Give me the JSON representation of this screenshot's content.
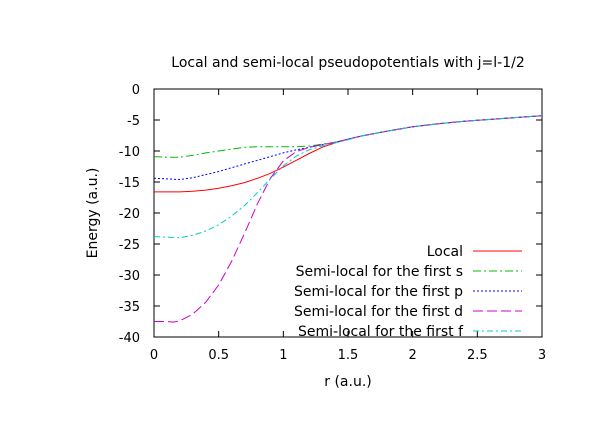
{
  "chart_data": {
    "type": "line",
    "title": "Local and semi-local pseudopotentials with j=l-1/2",
    "xlabel": "r (a.u.)",
    "ylabel": "Energy (a.u.)",
    "xlim": [
      0,
      3
    ],
    "ylim": [
      -40,
      0
    ],
    "xticks": [
      0,
      0.5,
      1,
      1.5,
      2,
      2.5,
      3
    ],
    "xtick_labels": [
      "0",
      "0.5",
      "1",
      "1.5",
      "2",
      "2.5",
      "3"
    ],
    "yticks": [
      0,
      -5,
      -10,
      -15,
      -20,
      -25,
      -30,
      -35,
      -40
    ],
    "ytick_labels": [
      "0",
      "-5",
      "-10",
      "-15",
      "-20",
      "-25",
      "-30",
      "-35",
      "-40"
    ],
    "grid": false,
    "legend_position": "bottom-right",
    "series": [
      {
        "name": "Local",
        "color": "#ff0000",
        "dash": "",
        "x": [
          0,
          0.1,
          0.2,
          0.3,
          0.4,
          0.5,
          0.6,
          0.7,
          0.8,
          0.9,
          1.0,
          1.1,
          1.2,
          1.3,
          1.4,
          1.5,
          1.6,
          1.8,
          2.0,
          2.2,
          2.4,
          2.6,
          2.8,
          3.0
        ],
        "y": [
          -16.6,
          -16.6,
          -16.6,
          -16.5,
          -16.3,
          -16.0,
          -15.6,
          -15.1,
          -14.4,
          -13.6,
          -12.6,
          -11.5,
          -10.4,
          -9.4,
          -8.7,
          -8.1,
          -7.6,
          -6.8,
          -6.1,
          -5.6,
          -5.2,
          -4.9,
          -4.6,
          -4.3
        ]
      },
      {
        "name": "Semi-local for the first s",
        "color": "#00bb00",
        "dash": "8,3,2,3",
        "x": [
          0,
          0.1,
          0.2,
          0.3,
          0.4,
          0.5,
          0.6,
          0.7,
          0.8,
          0.9,
          1.0,
          1.1,
          1.2,
          1.3,
          1.4,
          1.5,
          1.6,
          1.8,
          2.0,
          2.2,
          2.4,
          2.6,
          2.8,
          3.0
        ],
        "y": [
          -10.9,
          -11.0,
          -11.0,
          -10.7,
          -10.3,
          -10.0,
          -9.7,
          -9.4,
          -9.3,
          -9.3,
          -9.3,
          -9.3,
          -9.2,
          -8.9,
          -8.6,
          -8.1,
          -7.6,
          -6.8,
          -6.1,
          -5.6,
          -5.2,
          -4.9,
          -4.6,
          -4.3
        ]
      },
      {
        "name": "Semi-local for the first p",
        "color": "#0000ff",
        "dash": "2,2",
        "x": [
          0,
          0.1,
          0.2,
          0.3,
          0.4,
          0.5,
          0.6,
          0.7,
          0.8,
          0.9,
          1.0,
          1.1,
          1.2,
          1.3,
          1.4,
          1.5,
          1.6,
          1.8,
          2.0,
          2.2,
          2.4,
          2.6,
          2.8,
          3.0
        ],
        "y": [
          -14.4,
          -14.5,
          -14.6,
          -14.3,
          -13.8,
          -13.3,
          -12.7,
          -12.1,
          -11.5,
          -10.9,
          -10.3,
          -9.8,
          -9.4,
          -9.0,
          -8.6,
          -8.1,
          -7.6,
          -6.8,
          -6.1,
          -5.6,
          -5.2,
          -4.9,
          -4.6,
          -4.3
        ]
      },
      {
        "name": "Semi-local for the first d",
        "color": "#cc00cc",
        "dash": "10,4",
        "x": [
          0,
          0.1,
          0.15,
          0.2,
          0.3,
          0.4,
          0.5,
          0.6,
          0.7,
          0.8,
          0.9,
          1.0,
          1.1,
          1.2,
          1.3,
          1.4,
          1.5,
          1.6,
          1.8,
          2.0,
          2.2,
          2.4,
          2.6,
          2.8,
          3.0
        ],
        "y": [
          -37.5,
          -37.5,
          -37.6,
          -37.4,
          -36.3,
          -34.4,
          -31.6,
          -27.8,
          -23.3,
          -18.5,
          -14.4,
          -11.6,
          -10.1,
          -9.4,
          -9.0,
          -8.6,
          -8.1,
          -7.6,
          -6.8,
          -6.1,
          -5.6,
          -5.2,
          -4.9,
          -4.6,
          -4.3
        ]
      },
      {
        "name": "Semi-local for the first f",
        "color": "#00cccc",
        "dash": "6,3,2,3",
        "x": [
          0,
          0.1,
          0.2,
          0.3,
          0.4,
          0.5,
          0.6,
          0.7,
          0.8,
          0.9,
          1.0,
          1.1,
          1.2,
          1.3,
          1.4,
          1.5,
          1.6,
          1.8,
          2.0,
          2.2,
          2.4,
          2.6,
          2.8,
          3.0
        ],
        "y": [
          -23.8,
          -23.9,
          -24.0,
          -23.6,
          -22.9,
          -21.9,
          -20.5,
          -18.8,
          -16.7,
          -14.5,
          -12.4,
          -10.8,
          -9.8,
          -9.2,
          -8.7,
          -8.2,
          -7.6,
          -6.8,
          -6.1,
          -5.6,
          -5.2,
          -4.9,
          -4.6,
          -4.3
        ]
      }
    ]
  }
}
